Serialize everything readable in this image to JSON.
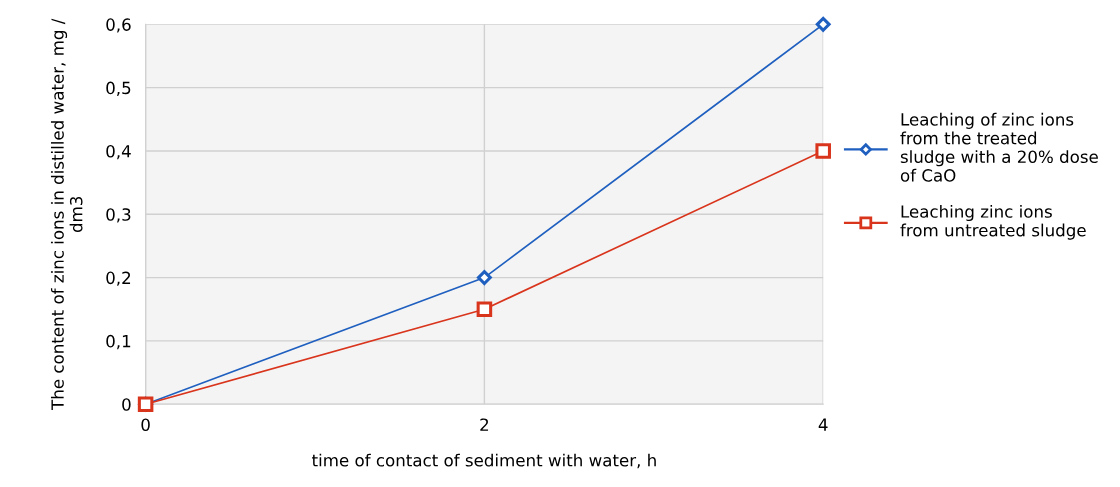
{
  "chart_data": {
    "type": "line",
    "xlabel": "time of contact of sediment with water, h",
    "ylabel": "The content of zinc ions in distilled water, mg / dm3",
    "x": [
      0,
      2,
      4
    ],
    "series": [
      {
        "name": "Leaching of zinc ions from the treated sludge with a 20% dose of CaO",
        "color": "#1f5fbf",
        "marker": "diamond",
        "values": [
          0,
          0.2,
          0.6
        ]
      },
      {
        "name": "Leaching zinc ions from untreated sludge",
        "color": "#d9341c",
        "marker": "square",
        "values": [
          0,
          0.15,
          0.4
        ]
      }
    ],
    "xlim": [
      0,
      4
    ],
    "xticks": [
      0,
      2,
      4
    ],
    "ylim": [
      0,
      0.6
    ],
    "yticks": [
      {
        "value": 0,
        "label": "0"
      },
      {
        "value": 0.1,
        "label": "0,1"
      },
      {
        "value": 0.2,
        "label": "0,2"
      },
      {
        "value": 0.3,
        "label": "0,3"
      },
      {
        "value": 0.4,
        "label": "0,4"
      },
      {
        "value": 0.5,
        "label": "0,5"
      },
      {
        "value": 0.6,
        "label": "0,6"
      }
    ],
    "grid": true,
    "legend": "right"
  }
}
